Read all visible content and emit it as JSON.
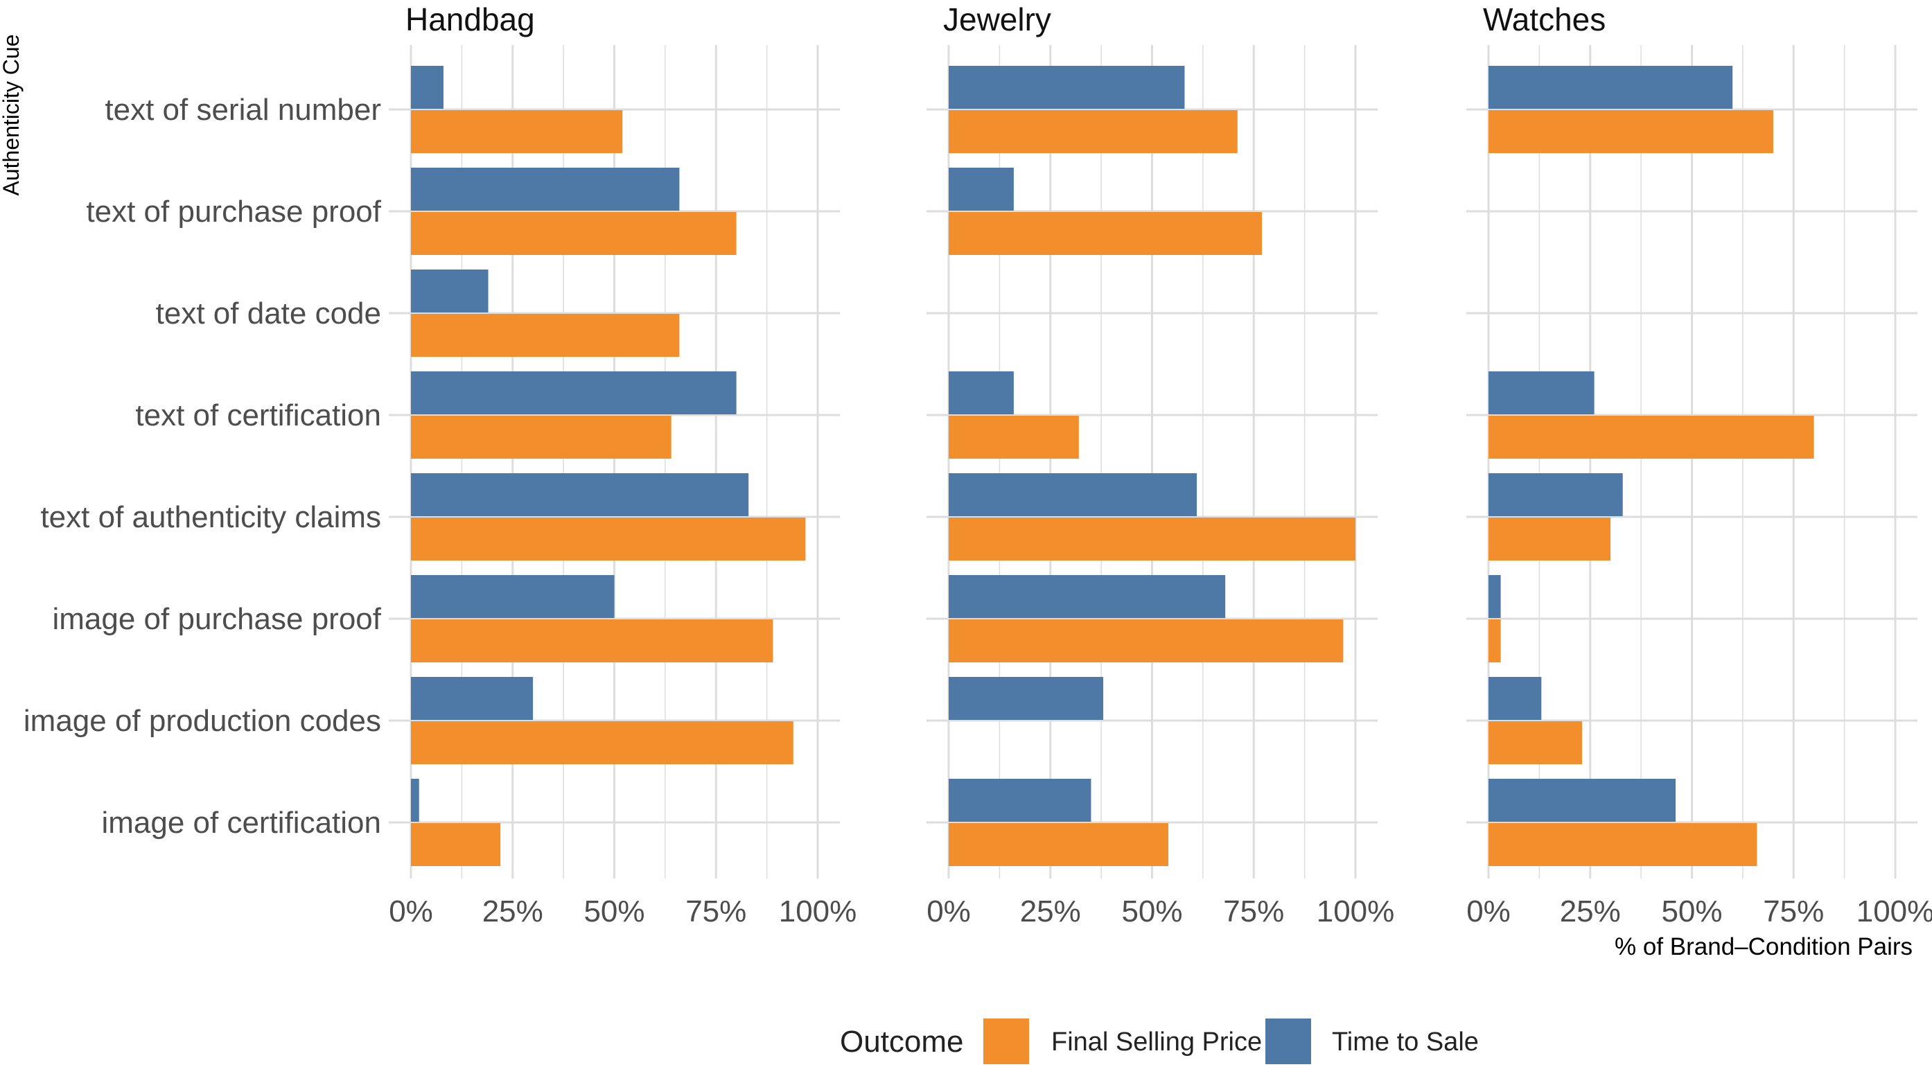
{
  "chart_data": {
    "type": "bar",
    "orientation": "horizontal",
    "ylabel": "Authenticity Cue",
    "xlabel": "% of Brand–Condition Pairs",
    "xlim": [
      0,
      100
    ],
    "x_ticks": [
      "0%",
      "25%",
      "50%",
      "75%",
      "100%"
    ],
    "grid": true,
    "categories": [
      "text of serial number",
      "text of purchase proof",
      "text of date code",
      "text of certification",
      "text of authenticity claims",
      "image of purchase proof",
      "image of production codes",
      "image of certification"
    ],
    "legend": {
      "title": "Outcome",
      "position": "bottom",
      "entries": [
        {
          "label": "Final Selling Price",
          "color": "#f28e2b"
        },
        {
          "label": "Time to Sale",
          "color": "#4e79a7"
        }
      ]
    },
    "panels": [
      {
        "title": "Handbag",
        "series": [
          {
            "name": "Time to Sale",
            "color": "#4e79a7",
            "values": [
              8,
              66,
              19,
              80,
              83,
              50,
              30,
              2
            ]
          },
          {
            "name": "Final Selling Price",
            "color": "#f28e2b",
            "values": [
              52,
              80,
              66,
              64,
              97,
              89,
              94,
              22
            ]
          }
        ]
      },
      {
        "title": "Jewelry",
        "series": [
          {
            "name": "Time to Sale",
            "color": "#4e79a7",
            "values": [
              58,
              16,
              null,
              16,
              61,
              68,
              38,
              35
            ]
          },
          {
            "name": "Final Selling Price",
            "color": "#f28e2b",
            "values": [
              71,
              77,
              null,
              32,
              100,
              97,
              null,
              54
            ]
          }
        ]
      },
      {
        "title": "Watches",
        "series": [
          {
            "name": "Time to Sale",
            "color": "#4e79a7",
            "values": [
              60,
              null,
              null,
              26,
              33,
              3,
              13,
              46
            ]
          },
          {
            "name": "Final Selling Price",
            "color": "#f28e2b",
            "values": [
              70,
              null,
              null,
              80,
              30,
              3,
              23,
              66
            ]
          }
        ]
      }
    ]
  }
}
